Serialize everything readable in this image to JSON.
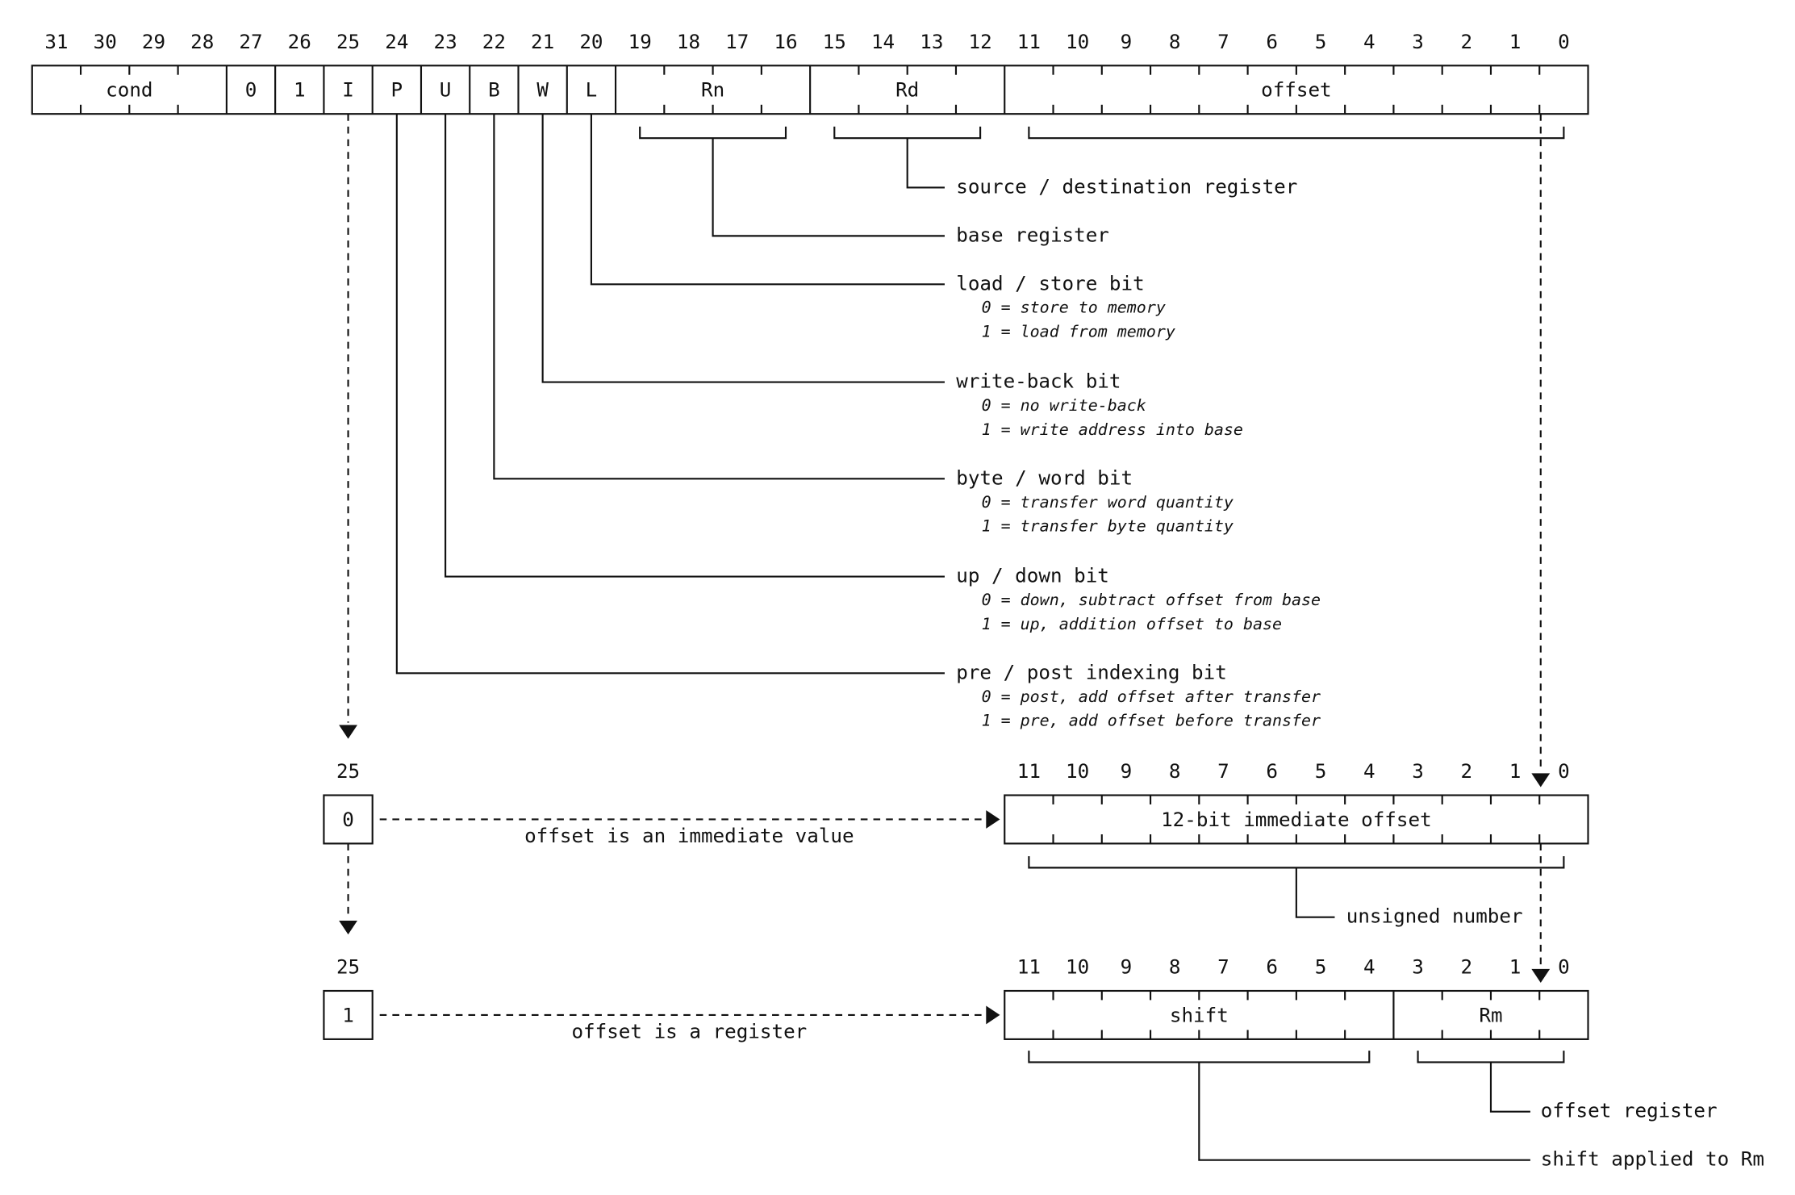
{
  "main_register": {
    "bit_numbers": [
      31,
      30,
      29,
      28,
      27,
      26,
      25,
      24,
      23,
      22,
      21,
      20,
      19,
      18,
      17,
      16,
      15,
      14,
      13,
      12,
      11,
      10,
      9,
      8,
      7,
      6,
      5,
      4,
      3,
      2,
      1,
      0
    ],
    "fields": [
      "cond",
      "0",
      "1",
      "I",
      "P",
      "U",
      "B",
      "W",
      "L",
      "Rn",
      "Rd",
      "offset"
    ]
  },
  "annotations": [
    {
      "label": "source / destination register"
    },
    {
      "label": "base register"
    },
    {
      "label": "load / store bit",
      "notes": [
        "0 = store to memory",
        "1 = load from memory"
      ]
    },
    {
      "label": "write-back bit",
      "notes": [
        "0 = no write-back",
        "1 = write address into base"
      ]
    },
    {
      "label": "byte / word bit",
      "notes": [
        "0 = transfer word quantity",
        "1 = transfer byte quantity"
      ]
    },
    {
      "label": "up / down bit",
      "notes": [
        "0 = down, subtract offset from base",
        "1 = up, addition offset to base"
      ]
    },
    {
      "label": "pre / post indexing bit",
      "notes": [
        "0 = post, add offset after transfer",
        "1 = pre, add offset before transfer"
      ]
    }
  ],
  "immediate_case": {
    "bit_label": 25,
    "bit_value": "0",
    "description": "offset is an immediate value",
    "bit_numbers": [
      11,
      10,
      9,
      8,
      7,
      6,
      5,
      4,
      3,
      2,
      1,
      0
    ],
    "fields": [
      "12-bit immediate offset"
    ],
    "annotations": [
      "unsigned number"
    ]
  },
  "register_case": {
    "bit_label": 25,
    "bit_value": "1",
    "description": "offset is a register",
    "bit_numbers": [
      11,
      10,
      9,
      8,
      7,
      6,
      5,
      4,
      3,
      2,
      1,
      0
    ],
    "fields": [
      "shift",
      "Rm"
    ],
    "annotations": [
      "offset register",
      "shift applied to Rm"
    ]
  }
}
